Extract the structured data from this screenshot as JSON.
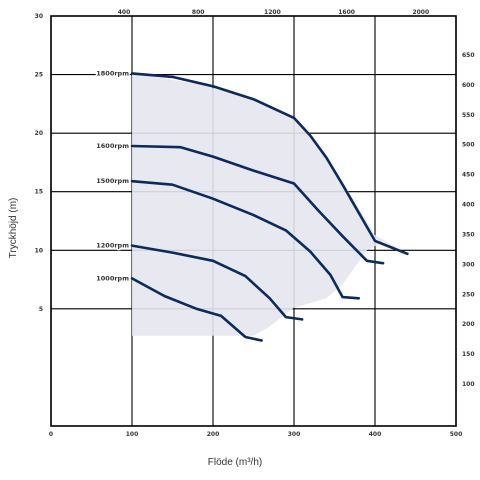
{
  "chart_data": {
    "type": "line",
    "title": "",
    "xlabel": "Flöde (m³/h)",
    "ylabel": "Tryckhöjd (m)",
    "xlim": [
      0,
      500
    ],
    "ylim": [
      -5,
      30
    ],
    "x_ticks": [
      "0",
      "100",
      "200",
      "300",
      "400",
      "500"
    ],
    "y_ticks": [
      "5",
      "10",
      "15",
      "20",
      "25",
      "30"
    ],
    "top_ticks": [
      "400",
      "800",
      "1200",
      "1600",
      "2000"
    ],
    "right_ticks": [
      "100",
      "150",
      "200",
      "250",
      "300",
      "350",
      "400",
      "450",
      "500",
      "550",
      "600",
      "650"
    ],
    "grid": true,
    "fill_color": "#e4e6ee",
    "line_color": "#0d2a5c",
    "envelope": [
      [
        100,
        25.1
      ],
      [
        180,
        24.2
      ],
      [
        250,
        22.9
      ],
      [
        300,
        21.3
      ],
      [
        340,
        18.0
      ],
      [
        380,
        13.6
      ],
      [
        400,
        11.3
      ],
      [
        440,
        9.7
      ],
      [
        410,
        10.7
      ],
      [
        390,
        10.0
      ],
      [
        360,
        7.1
      ],
      [
        340,
        5.9
      ],
      [
        300,
        5.1
      ],
      [
        270,
        3.5
      ],
      [
        250,
        2.7
      ],
      [
        100,
        2.7
      ]
    ],
    "series": [
      {
        "name": "1800rpm",
        "points": [
          [
            100,
            25.1
          ],
          [
            150,
            24.8
          ],
          [
            200,
            24.0
          ],
          [
            250,
            22.9
          ],
          [
            300,
            21.3
          ],
          [
            320,
            19.8
          ],
          [
            340,
            17.9
          ],
          [
            360,
            15.6
          ],
          [
            380,
            13.2
          ],
          [
            400,
            10.8
          ],
          [
            440,
            9.7
          ]
        ]
      },
      {
        "name": "1600rpm",
        "points": [
          [
            100,
            18.9
          ],
          [
            160,
            18.8
          ],
          [
            200,
            18.0
          ],
          [
            250,
            16.8
          ],
          [
            300,
            15.7
          ],
          [
            330,
            13.4
          ],
          [
            360,
            11.2
          ],
          [
            390,
            9.1
          ],
          [
            410,
            8.9
          ]
        ]
      },
      {
        "name": "1500rpm",
        "points": [
          [
            100,
            15.9
          ],
          [
            150,
            15.6
          ],
          [
            200,
            14.4
          ],
          [
            250,
            13.0
          ],
          [
            290,
            11.7
          ],
          [
            320,
            9.9
          ],
          [
            345,
            7.9
          ],
          [
            360,
            6.0
          ],
          [
            380,
            5.9
          ]
        ]
      },
      {
        "name": "1200rpm",
        "points": [
          [
            100,
            10.4
          ],
          [
            150,
            9.8
          ],
          [
            200,
            9.1
          ],
          [
            240,
            7.8
          ],
          [
            270,
            5.9
          ],
          [
            290,
            4.3
          ],
          [
            310,
            4.1
          ]
        ]
      },
      {
        "name": "1000rpm",
        "points": [
          [
            100,
            7.6
          ],
          [
            140,
            6.1
          ],
          [
            180,
            5.0
          ],
          [
            210,
            4.4
          ],
          [
            240,
            2.6
          ],
          [
            260,
            2.3
          ]
        ]
      }
    ]
  }
}
